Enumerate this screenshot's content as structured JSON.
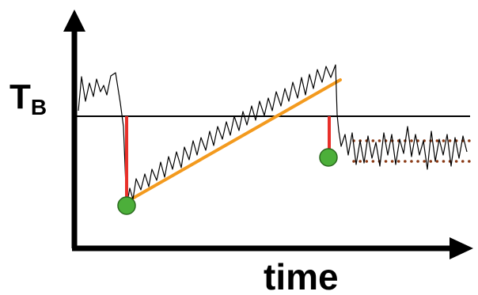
{
  "labels": {
    "y_main": "T",
    "y_sub": "B",
    "x": "time"
  },
  "colors": {
    "axis": "#000000",
    "trace": "#000000",
    "trend": "#f39a1e",
    "drop_marker": "#e8302a",
    "circle_fill": "#4caf3a",
    "circle_stroke": "#2a6a1e",
    "band_dots": "#8a3a16"
  }
}
